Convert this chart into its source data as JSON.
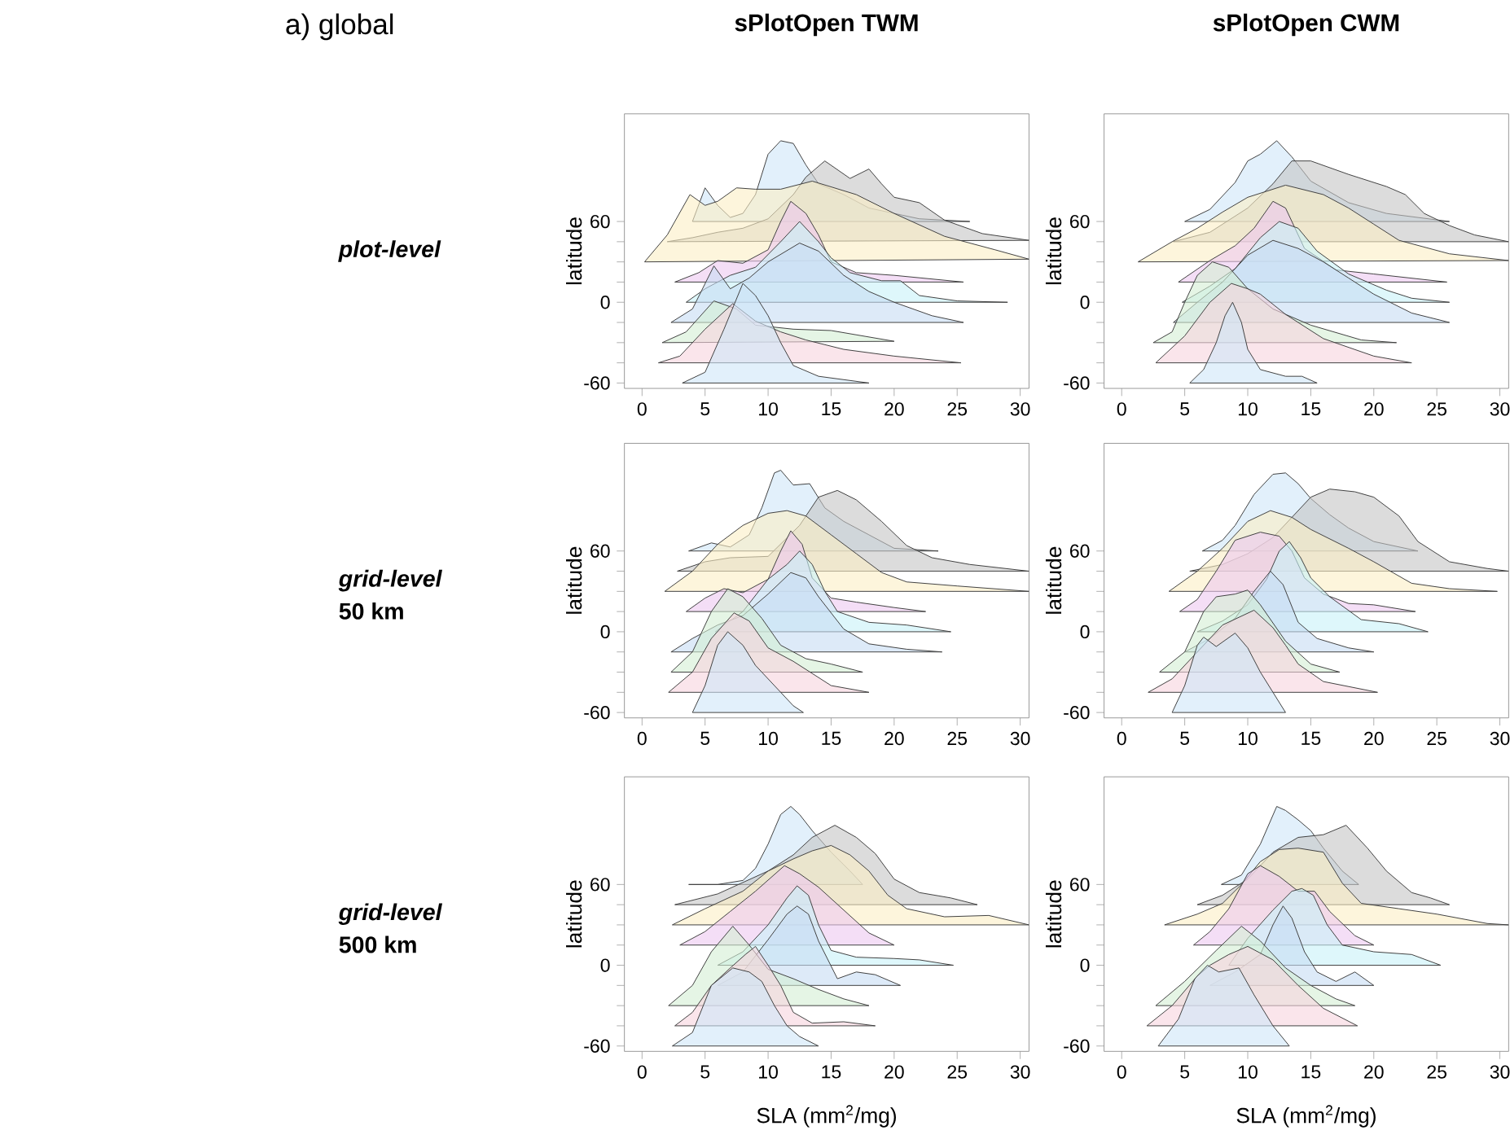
{
  "chart_data": [
    {
      "type": "area",
      "title": "sPlotOpen TWM",
      "ylabel": "latitude",
      "annotations": [
        "a) global",
        "plot-level"
      ],
      "xlim": [
        -1.4,
        30.7
      ],
      "ylim": [
        -64,
        140
      ],
      "xticks": [
        0,
        5,
        10,
        15,
        20,
        25,
        30
      ],
      "yticks": [
        -60,
        {
          "value": -45,
          "label": null
        },
        {
          "value": -30,
          "label": null
        },
        {
          "value": -15,
          "label": null
        },
        0,
        {
          "value": 15,
          "label": null
        },
        {
          "value": 30,
          "label": null
        },
        {
          "value": 45,
          "label": null
        },
        60
      ],
      "series": [
        {
          "color": "#cfe6f8",
          "x": [
            4,
            5,
            6,
            7,
            8,
            9,
            10,
            11,
            12,
            13,
            14,
            16,
            18,
            20,
            22,
            26
          ],
          "values": [
            60,
            85,
            72,
            63,
            66,
            80,
            110,
            120,
            118,
            102,
            88,
            80,
            70,
            66,
            62,
            60
          ]
        },
        {
          "color": "#c4c4c4",
          "x": [
            2,
            4,
            6,
            8,
            10,
            12,
            13,
            14.5,
            16.5,
            18,
            19,
            20,
            22,
            24,
            27,
            30.7
          ],
          "values": [
            45,
            48,
            52,
            55,
            62,
            80,
            93,
            105,
            92,
            99,
            88,
            78,
            74,
            61,
            51,
            46
          ]
        },
        {
          "color": "#fcefc4",
          "x": [
            0.2,
            2,
            3.8,
            5,
            6,
            7.5,
            9,
            11,
            13.5,
            17,
            20,
            24,
            28,
            30.7
          ],
          "values": [
            30,
            50,
            80,
            72,
            75,
            85,
            84,
            84,
            90,
            80,
            66,
            49,
            39,
            32
          ]
        },
        {
          "color": "#ecc8f0",
          "x": [
            2.6,
            4.5,
            6,
            8,
            10,
            11,
            11.8,
            13,
            14,
            15,
            17,
            20,
            25.5
          ],
          "values": [
            15,
            22,
            31,
            29,
            39,
            60,
            75,
            66,
            50,
            30,
            22,
            20,
            15
          ]
        },
        {
          "color": "#c8f2f8",
          "x": [
            3.5,
            5,
            7,
            9,
            11,
            12.5,
            14,
            15,
            16.5,
            19,
            20.5,
            22,
            25,
            29
          ],
          "values": [
            0,
            10,
            20,
            26,
            45,
            60,
            45,
            33,
            22,
            16,
            16,
            5,
            1,
            0
          ]
        },
        {
          "color": "#c6dcf4",
          "x": [
            2.3,
            4,
            5.7,
            7,
            8.5,
            10,
            12.5,
            14,
            16,
            18,
            20,
            23,
            25.5
          ],
          "values": [
            -15,
            -5,
            27,
            10,
            18,
            30,
            44,
            38,
            20,
            8,
            0,
            -10,
            -15
          ]
        },
        {
          "color": "#d4efd4",
          "x": [
            1.6,
            3.5,
            5.7,
            7.5,
            9,
            12,
            15,
            20
          ],
          "values": [
            -30,
            -22,
            1,
            -5,
            -17,
            -20,
            -21,
            -29
          ]
        },
        {
          "color": "#f6d4de",
          "x": [
            1.3,
            3,
            5,
            7.2,
            9,
            11,
            13,
            16,
            20,
            25.3
          ],
          "values": [
            -45,
            -40,
            -20,
            -1,
            -14,
            -22,
            -28,
            -35,
            -40,
            -45
          ]
        },
        {
          "color": "#cfe6f8",
          "x": [
            3.2,
            5,
            6.5,
            8,
            9,
            10,
            11,
            12,
            14,
            18
          ],
          "values": [
            -60,
            -52,
            -20,
            14,
            5,
            -10,
            -30,
            -47,
            -55,
            -60
          ]
        }
      ]
    },
    {
      "type": "area",
      "title": "sPlotOpen CWM",
      "ylabel": "latitude",
      "xlim": [
        -1.4,
        30.7
      ],
      "ylim": [
        -64,
        140
      ],
      "xticks": [
        0,
        5,
        10,
        15,
        20,
        25,
        30
      ],
      "yticks": [
        -60,
        {
          "value": -45,
          "label": null
        },
        {
          "value": -30,
          "label": null
        },
        {
          "value": -15,
          "label": null
        },
        0,
        {
          "value": 15,
          "label": null
        },
        {
          "value": 30,
          "label": null
        },
        {
          "value": 45,
          "label": null
        },
        60
      ],
      "series": [
        {
          "color": "#cfe6f8",
          "x": [
            5,
            7,
            9,
            10,
            11,
            12.3,
            13.5,
            15,
            18,
            21,
            26
          ],
          "values": [
            60,
            69,
            89,
            105,
            110,
            120,
            108,
            90,
            74,
            66,
            60
          ]
        },
        {
          "color": "#c4c4c4",
          "x": [
            4.1,
            7,
            10,
            12,
            13.5,
            15,
            18,
            21,
            22.5,
            24,
            26,
            28,
            30.7
          ],
          "values": [
            45,
            52,
            70,
            88,
            105,
            105,
            95,
            86,
            80,
            66,
            57,
            50,
            45
          ]
        },
        {
          "color": "#fcefc4",
          "x": [
            1.3,
            4,
            6,
            8,
            10,
            13,
            16,
            18,
            20,
            22,
            26,
            30.7
          ],
          "values": [
            30,
            45,
            55,
            67,
            78,
            87,
            80,
            70,
            58,
            46,
            36,
            31
          ]
        },
        {
          "color": "#ecc8f0",
          "x": [
            4.5,
            7,
            9,
            10.5,
            12,
            13,
            14.5,
            17,
            20,
            25.8
          ],
          "values": [
            15,
            31,
            42,
            55,
            75,
            70,
            40,
            24,
            21,
            15
          ]
        },
        {
          "color": "#c8f2f8",
          "x": [
            4.8,
            7,
            9,
            11,
            12.5,
            14,
            15.5,
            18,
            21,
            23,
            26
          ],
          "values": [
            0,
            12,
            25,
            48,
            60,
            55,
            38,
            21,
            9,
            3,
            0
          ]
        },
        {
          "color": "#c6dcf4",
          "x": [
            4.1,
            6,
            8,
            10,
            12,
            14,
            16,
            18,
            20,
            23,
            26
          ],
          "values": [
            -15,
            0,
            15,
            35,
            46,
            40,
            30,
            18,
            6,
            -8,
            -15
          ]
        },
        {
          "color": "#d4efd4",
          "x": [
            2.5,
            4,
            5,
            6,
            7.2,
            8.5,
            10,
            12,
            15,
            19,
            21.8
          ],
          "values": [
            -30,
            -22,
            0,
            20,
            30,
            26,
            10,
            -5,
            -17,
            -28,
            -30
          ]
        },
        {
          "color": "#f6d4de",
          "x": [
            2.7,
            5,
            7,
            8.7,
            10,
            11,
            13,
            16,
            20,
            23
          ],
          "values": [
            -45,
            -25,
            0,
            14,
            10,
            6,
            -9,
            -27,
            -40,
            -45
          ]
        },
        {
          "color": "#cfe6f8",
          "x": [
            5.4,
            6.5,
            7.5,
            8.2,
            8.8,
            9.5,
            10,
            11,
            13,
            14.3,
            15.5
          ],
          "values": [
            -60,
            -50,
            -30,
            -10,
            0,
            -15,
            -35,
            -50,
            -55,
            -55,
            -60
          ]
        }
      ]
    },
    {
      "type": "area",
      "ylabel": "latitude",
      "annotations": [
        "grid-level",
        "50 km"
      ],
      "xlim": [
        -1.4,
        30.7
      ],
      "ylim": [
        -64,
        140
      ],
      "xticks": [
        0,
        5,
        10,
        15,
        20,
        25,
        30
      ],
      "yticks": [
        -60,
        {
          "value": -45,
          "label": null
        },
        {
          "value": -30,
          "label": null
        },
        {
          "value": -15,
          "label": null
        },
        0,
        {
          "value": 15,
          "label": null
        },
        {
          "value": 30,
          "label": null
        },
        {
          "value": 45,
          "label": null
        },
        60
      ],
      "series": [
        {
          "color": "#cfe6f8",
          "x": [
            3.7,
            5.5,
            7,
            8.5,
            9.5,
            10.5,
            11,
            12,
            13.3,
            14.5,
            16,
            18,
            20,
            23.5
          ],
          "values": [
            60,
            66,
            63,
            72,
            92,
            118,
            120,
            109,
            110,
            92,
            82,
            72,
            62,
            60
          ]
        },
        {
          "color": "#c4c4c4",
          "x": [
            2.8,
            5,
            7,
            10,
            12.5,
            14,
            15.5,
            17,
            19,
            21,
            23,
            26,
            30.7
          ],
          "values": [
            45,
            52,
            55,
            56,
            79,
            100,
            105,
            98,
            82,
            64,
            55,
            50,
            45
          ]
        },
        {
          "color": "#fcefc4",
          "x": [
            1.8,
            4,
            6,
            8,
            10,
            11.5,
            13,
            15,
            17,
            19,
            21,
            25,
            30.7
          ],
          "values": [
            30,
            45,
            65,
            79,
            88,
            90,
            86,
            72,
            58,
            44,
            37,
            34,
            30
          ]
        },
        {
          "color": "#ecc8f0",
          "x": [
            3.5,
            5,
            6.5,
            8,
            10,
            11,
            11.8,
            12.7,
            13.5,
            15,
            17,
            20,
            22.5
          ],
          "values": [
            15,
            25,
            32,
            29,
            39,
            60,
            75,
            65,
            40,
            25,
            22,
            18,
            15
          ]
        },
        {
          "color": "#c8f2f8",
          "x": [
            5.8,
            8,
            10,
            11.5,
            12.5,
            13.5,
            14.5,
            15.5,
            18,
            21,
            24.5
          ],
          "values": [
            0,
            15,
            39,
            50,
            60,
            50,
            30,
            15,
            7,
            5,
            0
          ]
        },
        {
          "color": "#c6dcf4",
          "x": [
            2.3,
            4,
            6,
            8,
            10,
            11.8,
            13,
            14,
            16,
            18,
            21,
            23.8
          ],
          "values": [
            -15,
            -5,
            5,
            12,
            28,
            44,
            40,
            26,
            2,
            -9,
            -13,
            -15
          ]
        },
        {
          "color": "#d4efd4",
          "x": [
            2.3,
            4,
            5.5,
            6.8,
            8,
            9.5,
            11,
            13,
            15,
            17.5
          ],
          "values": [
            -30,
            -15,
            15,
            32,
            26,
            10,
            -10,
            -20,
            -24,
            -30
          ]
        },
        {
          "color": "#f6d4de",
          "x": [
            2.1,
            4,
            5.5,
            7.3,
            8.5,
            10,
            12,
            15,
            18
          ],
          "values": [
            -45,
            -30,
            -5,
            14,
            8,
            -12,
            -22,
            -40,
            -45
          ]
        },
        {
          "color": "#cfe6f8",
          "x": [
            4,
            5,
            6,
            6.8,
            8,
            9,
            10.5,
            12,
            12.8
          ],
          "values": [
            -60,
            -40,
            -10,
            0,
            -10,
            -25,
            -40,
            -55,
            -60
          ]
        }
      ]
    },
    {
      "type": "area",
      "ylabel": "latitude",
      "xlim": [
        -1.4,
        30.7
      ],
      "ylim": [
        -64,
        140
      ],
      "xticks": [
        0,
        5,
        10,
        15,
        20,
        25,
        30
      ],
      "yticks": [
        -60,
        {
          "value": -45,
          "label": null
        },
        {
          "value": -30,
          "label": null
        },
        {
          "value": -15,
          "label": null
        },
        0,
        {
          "value": 15,
          "label": null
        },
        {
          "value": 30,
          "label": null
        },
        {
          "value": 45,
          "label": null
        },
        60
      ],
      "series": [
        {
          "color": "#cfe6f8",
          "x": [
            6.4,
            8,
            9,
            10.5,
            12,
            13,
            14,
            15,
            16.5,
            18,
            20,
            23.5
          ],
          "values": [
            60,
            68,
            79,
            102,
            117,
            118,
            110,
            99,
            87,
            77,
            67,
            60
          ]
        },
        {
          "color": "#c4c4c4",
          "x": [
            5.4,
            8,
            10,
            12,
            13.5,
            15,
            16.5,
            18.5,
            20,
            22,
            23.5,
            26,
            29,
            30.7
          ],
          "values": [
            45,
            50,
            58,
            70,
            85,
            100,
            106,
            104,
            100,
            86,
            67,
            52,
            47,
            45
          ]
        },
        {
          "color": "#fcefc4",
          "x": [
            3.75,
            6,
            8,
            10,
            11.8,
            13.5,
            15,
            18,
            20,
            23,
            26,
            29.8
          ],
          "values": [
            30,
            45,
            62,
            82,
            90,
            85,
            76,
            62,
            52,
            36,
            32,
            30
          ]
        },
        {
          "color": "#ecc8f0",
          "x": [
            4.6,
            6,
            7.5,
            9,
            11,
            12.5,
            13.5,
            14.5,
            16,
            18,
            20,
            23.3
          ],
          "values": [
            15,
            24,
            45,
            68,
            74,
            71,
            60,
            40,
            28,
            21,
            20,
            15
          ]
        },
        {
          "color": "#c8f2f8",
          "x": [
            6,
            8,
            10,
            11.5,
            12.5,
            13.3,
            14.2,
            15,
            16.5,
            19,
            22,
            24.3
          ],
          "values": [
            0,
            8,
            20,
            39,
            60,
            67,
            55,
            40,
            26,
            9,
            6,
            0
          ]
        },
        {
          "color": "#c6dcf4",
          "x": [
            5,
            7,
            9,
            10.5,
            11.8,
            12.8,
            14,
            15.5,
            18,
            20
          ],
          "values": [
            -15,
            -5,
            10,
            30,
            45,
            35,
            7,
            -5,
            -12,
            -15
          ]
        },
        {
          "color": "#d4efd4",
          "x": [
            3,
            5,
            6.5,
            7.5,
            9,
            10,
            11,
            13,
            15,
            17.3
          ],
          "values": [
            -30,
            -15,
            15,
            26,
            28,
            31,
            20,
            -7,
            -24,
            -30
          ]
        },
        {
          "color": "#f6d4de",
          "x": [
            2.1,
            4,
            6,
            8,
            10.5,
            12,
            13,
            14,
            16,
            20.3
          ],
          "values": [
            -45,
            -35,
            -15,
            5,
            16,
            3,
            -10,
            -24,
            -37,
            -45
          ]
        },
        {
          "color": "#cfe6f8",
          "x": [
            4,
            5,
            6,
            6.5,
            7.5,
            9,
            10,
            11,
            12,
            13
          ],
          "values": [
            -60,
            -40,
            -10,
            -4,
            -11,
            -1,
            -12,
            -30,
            -45,
            -60
          ]
        }
      ]
    },
    {
      "type": "area",
      "ylabel": "latitude",
      "xlabel": "SLA (mm$^{2}$/mg)",
      "annotations": [
        "grid-level",
        "500 km"
      ],
      "xlim": [
        -1.4,
        30.7
      ],
      "ylim": [
        -64,
        140
      ],
      "xticks": [
        0,
        5,
        10,
        15,
        20,
        25,
        30
      ],
      "yticks": [
        -60,
        {
          "value": -45,
          "label": null
        },
        {
          "value": -30,
          "label": null
        },
        {
          "value": -15,
          "label": null
        },
        0,
        {
          "value": 15,
          "label": null
        },
        {
          "value": 30,
          "label": null
        },
        {
          "value": 45,
          "label": null
        },
        60
      ],
      "series": [
        {
          "color": "#cfe6f8",
          "x": [
            3.7,
            6,
            8,
            9,
            10,
            11,
            11.8,
            12.5,
            13.5,
            15,
            16.5,
            17.5
          ],
          "values": [
            60,
            60,
            63,
            72,
            90,
            112,
            118,
            112,
            100,
            84,
            70,
            60
          ]
        },
        {
          "color": "#c4c4c4",
          "x": [
            2.6,
            6,
            10,
            12,
            13.5,
            15.3,
            17,
            18.5,
            20,
            22,
            24.5,
            26.6
          ],
          "values": [
            45,
            53,
            70,
            82,
            95,
            104,
            95,
            83,
            64,
            54,
            50,
            45
          ]
        },
        {
          "color": "#fcefc4",
          "x": [
            2.4,
            5,
            8,
            10,
            12,
            13.5,
            15,
            16.5,
            18,
            19.5,
            21,
            24,
            27.5,
            30.7
          ],
          "values": [
            30,
            42,
            55,
            70,
            79,
            85,
            89,
            82,
            70,
            52,
            42,
            36,
            37,
            30
          ]
        },
        {
          "color": "#ecc8f0",
          "x": [
            3,
            5,
            7,
            9,
            11.3,
            12.5,
            14,
            16,
            18,
            20
          ],
          "values": [
            15,
            25,
            40,
            55,
            74,
            68,
            58,
            41,
            24,
            15
          ]
        },
        {
          "color": "#c8f2f8",
          "x": [
            6,
            8,
            10,
            11.5,
            12.3,
            13.2,
            14,
            15,
            17,
            20,
            22,
            24.7
          ],
          "values": [
            0,
            10,
            30,
            50,
            59,
            52,
            30,
            11,
            6,
            5,
            4,
            0
          ]
        },
        {
          "color": "#c6dcf4",
          "x": [
            6,
            8,
            10,
            11.5,
            12.3,
            13.2,
            14,
            15.5,
            17,
            18.5,
            20.5
          ],
          "values": [
            -15,
            -5,
            19,
            38,
            44,
            38,
            18,
            -10,
            -5,
            -7,
            -15
          ]
        },
        {
          "color": "#d4efd4",
          "x": [
            2.1,
            4,
            5.5,
            7.2,
            8.5,
            10,
            12,
            14,
            16,
            18
          ],
          "values": [
            -30,
            -15,
            10,
            29,
            15,
            -3,
            -10,
            -18,
            -25,
            -30
          ]
        },
        {
          "color": "#f6d4de",
          "x": [
            2.6,
            4,
            5.5,
            7,
            8.2,
            9,
            10,
            11,
            12,
            13.5,
            16,
            18.5
          ],
          "values": [
            -45,
            -35,
            -15,
            -2,
            8,
            14,
            0,
            -15,
            -35,
            -43,
            -42,
            -45
          ]
        },
        {
          "color": "#cfe6f8",
          "x": [
            2.4,
            4,
            5.5,
            7.2,
            8.5,
            9.5,
            10.5,
            11.5,
            12.5,
            14
          ],
          "values": [
            -60,
            -50,
            -15,
            -2,
            -5,
            -12,
            -30,
            -45,
            -53,
            -60
          ]
        }
      ]
    },
    {
      "type": "area",
      "ylabel": "latitude",
      "xlabel": "SLA (mm$^{2}$/mg)",
      "xlim": [
        -1.4,
        30.7
      ],
      "ylim": [
        -64,
        140
      ],
      "xticks": [
        0,
        5,
        10,
        15,
        20,
        25,
        30
      ],
      "yticks": [
        -60,
        {
          "value": -45,
          "label": null
        },
        {
          "value": -30,
          "label": null
        },
        {
          "value": -15,
          "label": null
        },
        0,
        {
          "value": 15,
          "label": null
        },
        {
          "value": 30,
          "label": null
        },
        {
          "value": 45,
          "label": null
        },
        60
      ],
      "series": [
        {
          "color": "#cfe6f8",
          "x": [
            7.9,
            9.5,
            11,
            12.3,
            13,
            14,
            15,
            16,
            17.5,
            18.8
          ],
          "values": [
            60,
            67,
            90,
            118,
            115,
            108,
            100,
            87,
            70,
            60
          ]
        },
        {
          "color": "#c4c4c4",
          "x": [
            6,
            8,
            10,
            12,
            14,
            16,
            17.8,
            19.5,
            21,
            23,
            24.5,
            26
          ],
          "values": [
            45,
            52,
            64,
            84,
            95,
            97,
            104,
            87,
            70,
            54,
            50,
            45
          ]
        },
        {
          "color": "#fcefc4",
          "x": [
            3.4,
            6,
            8,
            9.5,
            11,
            12.5,
            14,
            16,
            17.5,
            19,
            22,
            25,
            29,
            30.7
          ],
          "values": [
            30,
            38,
            46,
            60,
            77,
            86,
            87,
            84,
            61,
            46,
            42,
            38,
            31,
            30
          ]
        },
        {
          "color": "#ecc8f0",
          "x": [
            5.7,
            7,
            8.5,
            10,
            11,
            12.5,
            14,
            15.3,
            16.5,
            18.5,
            20
          ],
          "values": [
            15,
            25,
            42,
            68,
            74,
            66,
            55,
            55,
            40,
            22,
            15
          ]
        },
        {
          "color": "#c8f2f8",
          "x": [
            8.5,
            10,
            12,
            13.5,
            14.3,
            15.2,
            16.3,
            17.5,
            20,
            23,
            25.3
          ],
          "values": [
            0,
            20,
            41,
            55,
            57,
            52,
            30,
            15,
            10,
            8,
            0
          ]
        },
        {
          "color": "#c6dcf4",
          "x": [
            7,
            9,
            11,
            12,
            12.8,
            13.5,
            14.5,
            15.5,
            17,
            18.5,
            20
          ],
          "values": [
            -15,
            -5,
            8,
            30,
            44,
            35,
            10,
            -5,
            -12,
            -5,
            -15
          ]
        },
        {
          "color": "#d4efd4",
          "x": [
            2.7,
            5,
            7.5,
            9.5,
            11,
            13,
            15,
            17,
            18.5
          ],
          "values": [
            -30,
            -12,
            11,
            29,
            18,
            -2,
            -15,
            -25,
            -30
          ]
        },
        {
          "color": "#f6d4de",
          "x": [
            2,
            4,
            6,
            7,
            8.5,
            10,
            12,
            14,
            16,
            18.7
          ],
          "values": [
            -45,
            -30,
            -8,
            0,
            8,
            14,
            4,
            -15,
            -32,
            -45
          ]
        },
        {
          "color": "#cfe6f8",
          "x": [
            2.9,
            4.5,
            5.8,
            6.8,
            7.7,
            9.3,
            10.5,
            12,
            13.3
          ],
          "values": [
            -60,
            -40,
            -10,
            0,
            -5,
            -2,
            -22,
            -45,
            -60
          ]
        }
      ]
    }
  ]
}
